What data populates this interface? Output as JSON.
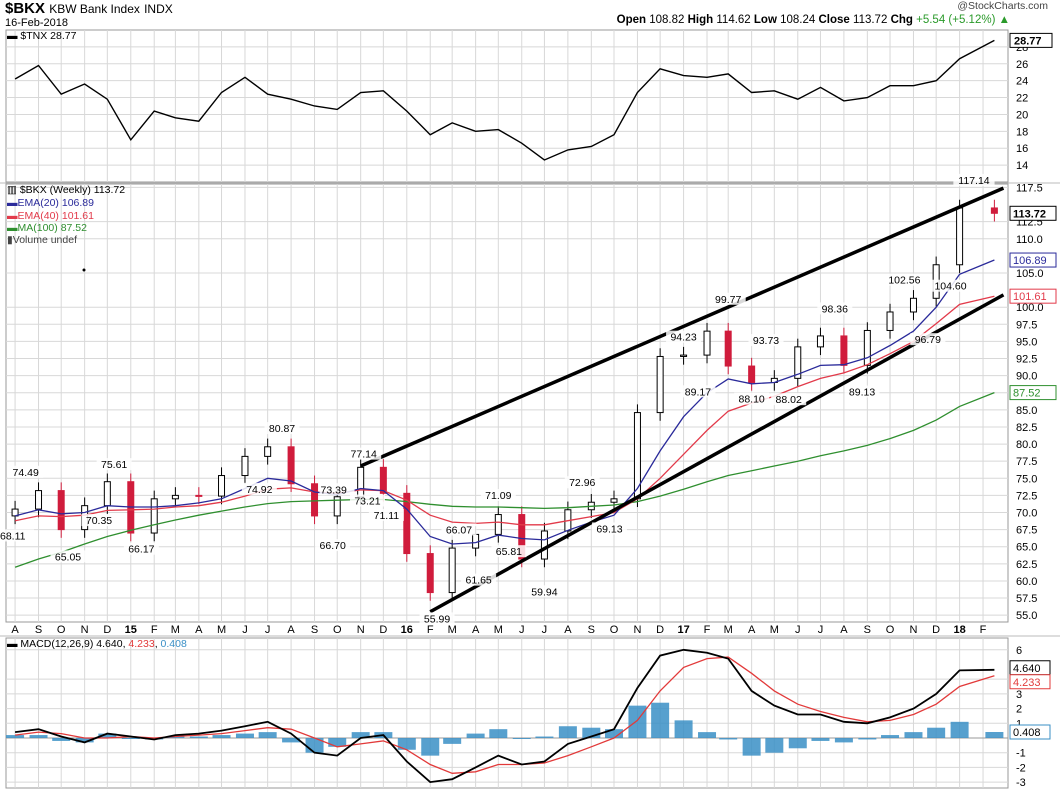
{
  "header": {
    "symbol": "$BKX",
    "name": "KBW Bank Index",
    "exchange": "INDX",
    "date": "16-Feb-2018",
    "credit": "@StockCharts.com",
    "ohlc": {
      "open_label": "Open",
      "open": "108.82",
      "high_label": "High",
      "high": "114.62",
      "low_label": "Low",
      "low": "108.24",
      "close_label": "Close",
      "close": "113.72",
      "chg_label": "Chg",
      "chg": "+5.54 (+5.12%)"
    },
    "chg_arrow_icon": "triangle-up-icon"
  },
  "colors": {
    "tnx": "#000000",
    "candle_up": "#000000",
    "candle_down": "#d01c3c",
    "ema20": "#2a2a9a",
    "ema40": "#e23a4a",
    "ma100": "#2f8f2f",
    "macd": "#000000",
    "signal": "#e23a3a",
    "histogram": "#3a8fc6",
    "grid": "#d8d8d8",
    "trendline": "#000000"
  },
  "chart_data": [
    {
      "type": "line",
      "legend": "$TNX 28.77",
      "last_value": "28.77",
      "ylim": [
        12,
        30
      ],
      "yticks": [
        "28",
        "26",
        "24",
        "22",
        "20",
        "18",
        "16",
        "14"
      ],
      "x": [
        "2014-08-01",
        "2014-09-01",
        "2014-10-01",
        "2014-11-01",
        "2014-12-01",
        "2015-01-01",
        "2015-02-01",
        "2015-03-01",
        "2015-04-01",
        "2015-05-01",
        "2015-06-01",
        "2015-07-01",
        "2015-08-01",
        "2015-09-01",
        "2015-10-01",
        "2015-11-01",
        "2015-12-01",
        "2016-01-01",
        "2016-02-01",
        "2016-03-01",
        "2016-04-01",
        "2016-05-01",
        "2016-06-01",
        "2016-07-01",
        "2016-08-01",
        "2016-09-01",
        "2016-10-01",
        "2016-11-01",
        "2016-12-01",
        "2017-01-01",
        "2017-02-01",
        "2017-03-01",
        "2017-04-01",
        "2017-05-01",
        "2017-06-01",
        "2017-07-01",
        "2017-08-01",
        "2017-09-01",
        "2017-10-01",
        "2017-11-01",
        "2017-12-01",
        "2018-01-01",
        "2018-02-16"
      ],
      "values": [
        24.2,
        25.8,
        22.4,
        23.6,
        21.8,
        17.0,
        20.4,
        19.6,
        19.2,
        22.6,
        24.4,
        22.4,
        21.8,
        21.0,
        20.6,
        22.6,
        22.8,
        20.4,
        17.6,
        19.0,
        18.0,
        18.2,
        16.6,
        14.6,
        15.8,
        16.2,
        17.6,
        22.6,
        25.4,
        24.6,
        24.4,
        24.8,
        22.6,
        22.8,
        21.8,
        23.2,
        21.6,
        22.0,
        23.4,
        23.4,
        24.0,
        26.6,
        28.77
      ]
    },
    {
      "type": "candlestick",
      "title": "$BKX (Weekly) 113.72",
      "last_value": "113.72",
      "legend": [
        {
          "name": "EMA(20)",
          "value": "106.89",
          "color_key": "ema20"
        },
        {
          "name": "EMA(40)",
          "value": "101.61",
          "color_key": "ema40"
        },
        {
          "name": "MA(100)",
          "value": "87.52",
          "color_key": "ma100"
        },
        {
          "name": "Volume undef",
          "value": "",
          "color_key": "tnx"
        }
      ],
      "ylim": [
        54,
        118
      ],
      "yticks": [
        "117.5",
        "112.5",
        "110.0",
        "105.0",
        "100.0",
        "97.5",
        "95.0",
        "92.5",
        "90.0",
        "87.5",
        "85.0",
        "82.5",
        "80.0",
        "77.5",
        "75.0",
        "72.5",
        "70.0",
        "67.5",
        "65.0",
        "62.5",
        "60.0",
        "57.5",
        "55.0"
      ],
      "right_labels": [
        {
          "text": "113.72",
          "value": 113.72,
          "style": "bold"
        },
        {
          "text": "106.89",
          "value": 106.89,
          "color_key": "ema20"
        },
        {
          "text": "101.61",
          "value": 101.61,
          "color_key": "ema40"
        },
        {
          "text": "87.52",
          "value": 87.52,
          "color_key": "ma100"
        }
      ],
      "x": [
        "2014-08-01",
        "2014-09-01",
        "2014-10-01",
        "2014-11-01",
        "2014-12-01",
        "2015-01-01",
        "2015-02-01",
        "2015-03-01",
        "2015-04-01",
        "2015-05-01",
        "2015-06-01",
        "2015-07-01",
        "2015-08-01",
        "2015-09-01",
        "2015-10-01",
        "2015-11-01",
        "2015-12-01",
        "2016-01-01",
        "2016-02-01",
        "2016-03-01",
        "2016-04-01",
        "2016-05-01",
        "2016-06-01",
        "2016-07-01",
        "2016-08-01",
        "2016-09-01",
        "2016-10-01",
        "2016-11-01",
        "2016-12-01",
        "2017-01-01",
        "2017-02-01",
        "2017-03-01",
        "2017-04-01",
        "2017-05-01",
        "2017-06-01",
        "2017-07-01",
        "2017-08-01",
        "2017-09-01",
        "2017-10-01",
        "2017-11-01",
        "2017-12-01",
        "2018-01-01",
        "2018-02-16"
      ],
      "close": [
        70.5,
        73.2,
        67.5,
        71.0,
        74.5,
        67.0,
        72.0,
        72.5,
        72.4,
        75.4,
        78.2,
        79.6,
        74.2,
        69.5,
        72.3,
        76.6,
        72.8,
        64.0,
        58.3,
        64.8,
        66.8,
        69.7,
        63.2,
        67.3,
        70.4,
        71.5,
        72.0,
        84.6,
        92.8,
        93.0,
        96.5,
        91.4,
        89.0,
        89.6,
        94.2,
        95.8,
        91.5,
        96.6,
        99.3,
        101.3,
        106.2,
        114.5,
        113.72
      ],
      "ema20": [
        69.5,
        70.4,
        69.8,
        70.0,
        71.0,
        70.8,
        70.8,
        71.0,
        71.4,
        72.0,
        73.5,
        75.0,
        74.6,
        73.0,
        72.6,
        73.5,
        73.2,
        70.5,
        66.5,
        65.4,
        65.6,
        66.7,
        66.2,
        66.0,
        67.4,
        68.6,
        69.6,
        73.5,
        79.0,
        84.0,
        87.5,
        89.5,
        88.8,
        89.0,
        90.2,
        91.5,
        91.6,
        92.6,
        94.4,
        96.5,
        100.0,
        104.8,
        106.89
      ],
      "ema40": [
        68.8,
        69.5,
        69.4,
        69.6,
        70.3,
        70.4,
        70.5,
        70.8,
        71.0,
        71.5,
        72.4,
        73.4,
        73.6,
        73.0,
        72.8,
        73.3,
        73.2,
        71.8,
        69.6,
        68.6,
        68.4,
        68.6,
        68.2,
        68.2,
        68.8,
        69.4,
        70.0,
        72.0,
        75.0,
        78.5,
        82.0,
        84.8,
        86.0,
        87.0,
        88.4,
        89.6,
        90.4,
        91.6,
        93.2,
        95.0,
        97.6,
        100.4,
        101.61
      ],
      "ma100": [
        62.0,
        63.2,
        64.2,
        65.4,
        66.5,
        67.4,
        68.2,
        68.9,
        69.6,
        70.2,
        70.8,
        71.3,
        71.6,
        71.7,
        71.8,
        71.9,
        71.9,
        71.6,
        71.2,
        70.9,
        70.8,
        70.8,
        70.7,
        70.6,
        70.7,
        70.9,
        71.1,
        71.6,
        72.4,
        73.4,
        74.5,
        75.4,
        76.1,
        76.8,
        77.5,
        78.3,
        79.0,
        79.8,
        80.8,
        82.0,
        83.5,
        85.5,
        87.52
      ],
      "annotations": [
        {
          "text": "74.49",
          "x": "2014-08-15",
          "y": 74.49,
          "pos": "above"
        },
        {
          "text": "68.11",
          "x": "2014-08-01",
          "y": 68.11,
          "pos": "below"
        },
        {
          "text": "65.05",
          "x": "2014-10-10",
          "y": 65.05,
          "pos": "below"
        },
        {
          "text": "75.61",
          "x": "2014-12-10",
          "y": 75.61,
          "pos": "above"
        },
        {
          "text": "70.35",
          "x": "2014-11-20",
          "y": 70.35,
          "pos": "below"
        },
        {
          "text": "66.17",
          "x": "2015-01-15",
          "y": 66.17,
          "pos": "below"
        },
        {
          "text": "80.87",
          "x": "2015-07-20",
          "y": 80.87,
          "pos": "above"
        },
        {
          "text": "74.92",
          "x": "2015-06-20",
          "y": 74.92,
          "pos": "below"
        },
        {
          "text": "73.39",
          "x": "2015-09-01",
          "y": 73.39,
          "pos": "right"
        },
        {
          "text": "66.70",
          "x": "2015-09-25",
          "y": 66.7,
          "pos": "below"
        },
        {
          "text": "77.14",
          "x": "2015-11-05",
          "y": 77.14,
          "pos": "above"
        },
        {
          "text": "73.21",
          "x": "2015-11-10",
          "y": 73.21,
          "pos": "below"
        },
        {
          "text": "71.11",
          "x": "2015-12-05",
          "y": 71.11,
          "pos": "below"
        },
        {
          "text": "66.07",
          "x": "2016-03-10",
          "y": 66.07,
          "pos": "above"
        },
        {
          "text": "55.99",
          "x": "2016-02-10",
          "y": 55.99,
          "pos": "below"
        },
        {
          "text": "61.65",
          "x": "2016-04-05",
          "y": 61.65,
          "pos": "below"
        },
        {
          "text": "71.09",
          "x": "2016-05-01",
          "y": 71.09,
          "pos": "above"
        },
        {
          "text": "65.81",
          "x": "2016-05-15",
          "y": 65.81,
          "pos": "below"
        },
        {
          "text": "59.94",
          "x": "2016-07-01",
          "y": 59.94,
          "pos": "below"
        },
        {
          "text": "72.96",
          "x": "2016-08-20",
          "y": 72.96,
          "pos": "above"
        },
        {
          "text": "69.13",
          "x": "2016-09-25",
          "y": 69.13,
          "pos": "below"
        },
        {
          "text": "94.23",
          "x": "2017-01-01",
          "y": 94.23,
          "pos": "above"
        },
        {
          "text": "89.17",
          "x": "2017-01-20",
          "y": 89.17,
          "pos": "below"
        },
        {
          "text": "99.77",
          "x": "2017-03-01",
          "y": 99.77,
          "pos": "above"
        },
        {
          "text": "93.73",
          "x": "2017-04-20",
          "y": 93.73,
          "pos": "above"
        },
        {
          "text": "88.10",
          "x": "2017-04-01",
          "y": 88.1,
          "pos": "below"
        },
        {
          "text": "88.02",
          "x": "2017-05-20",
          "y": 88.02,
          "pos": "below"
        },
        {
          "text": "98.36",
          "x": "2017-07-20",
          "y": 98.36,
          "pos": "above"
        },
        {
          "text": "89.13",
          "x": "2017-08-25",
          "y": 89.13,
          "pos": "below"
        },
        {
          "text": "102.56",
          "x": "2017-10-20",
          "y": 102.56,
          "pos": "above"
        },
        {
          "text": "96.79",
          "x": "2017-11-20",
          "y": 96.79,
          "pos": "below"
        },
        {
          "text": "104.60",
          "x": "2017-12-20",
          "y": 104.6,
          "pos": "below"
        },
        {
          "text": "117.14",
          "x": "2018-01-20",
          "y": 117.14,
          "pos": "above"
        }
      ],
      "trendlines": [
        {
          "x": [
            "2015-11-01",
            "2018-02-28"
          ],
          "y": [
            76.8,
            117.4
          ]
        },
        {
          "x": [
            "2016-02-01",
            "2018-02-28"
          ],
          "y": [
            55.5,
            101.8
          ]
        }
      ]
    },
    {
      "type": "line",
      "legend_label": "MACD(12,26,9)",
      "legend_macd": "4.640",
      "legend_signal": "4.233",
      "legend_hist": "0.408",
      "right_labels": [
        "4.640",
        "4.233",
        "0.408"
      ],
      "ylim": [
        -3.4,
        6.8
      ],
      "yticks": [
        "6",
        "4",
        "3",
        "2",
        "1",
        "-1",
        "-2",
        "-3"
      ],
      "x": [
        "2014-08-01",
        "2014-09-01",
        "2014-10-01",
        "2014-11-01",
        "2014-12-01",
        "2015-01-01",
        "2015-02-01",
        "2015-03-01",
        "2015-04-01",
        "2015-05-01",
        "2015-06-01",
        "2015-07-01",
        "2015-08-01",
        "2015-09-01",
        "2015-10-01",
        "2015-11-01",
        "2015-12-01",
        "2016-01-01",
        "2016-02-01",
        "2016-03-01",
        "2016-04-01",
        "2016-05-01",
        "2016-06-01",
        "2016-07-01",
        "2016-08-01",
        "2016-09-01",
        "2016-10-01",
        "2016-11-01",
        "2016-12-01",
        "2017-01-01",
        "2017-02-01",
        "2017-03-01",
        "2017-04-01",
        "2017-05-01",
        "2017-06-01",
        "2017-07-01",
        "2017-08-01",
        "2017-09-01",
        "2017-10-01",
        "2017-11-01",
        "2017-12-01",
        "2018-01-01",
        "2018-02-16"
      ],
      "series": [
        {
          "name": "MACD",
          "color_key": "macd",
          "values": [
            0.4,
            0.6,
            0.1,
            -0.3,
            0.3,
            0.1,
            -0.1,
            0.2,
            0.3,
            0.5,
            0.8,
            1.1,
            0.3,
            -1.0,
            -1.2,
            0.0,
            0.2,
            -1.6,
            -3.0,
            -2.8,
            -2.0,
            -1.2,
            -1.8,
            -1.6,
            -0.4,
            0.1,
            0.6,
            3.4,
            5.6,
            6.0,
            5.8,
            5.4,
            3.2,
            2.2,
            1.6,
            1.6,
            1.1,
            1.0,
            1.4,
            2.0,
            3.0,
            4.6,
            4.64
          ]
        },
        {
          "name": "Signal",
          "color_key": "signal",
          "values": [
            0.2,
            0.4,
            0.3,
            0.0,
            0.0,
            0.1,
            0.0,
            0.1,
            0.2,
            0.3,
            0.5,
            0.7,
            0.6,
            0.0,
            -0.6,
            -0.4,
            -0.2,
            -0.8,
            -1.8,
            -2.4,
            -2.3,
            -1.8,
            -1.8,
            -1.7,
            -1.2,
            -0.6,
            0.0,
            1.2,
            3.2,
            4.8,
            5.4,
            5.5,
            4.4,
            3.2,
            2.3,
            1.8,
            1.4,
            1.1,
            1.2,
            1.6,
            2.3,
            3.5,
            4.233
          ]
        },
        {
          "name": "Histogram",
          "color_key": "histogram",
          "values": [
            0.2,
            0.2,
            -0.2,
            -0.3,
            0.3,
            0.0,
            -0.1,
            0.1,
            0.1,
            0.2,
            0.3,
            0.4,
            -0.3,
            -1.0,
            -0.6,
            0.4,
            0.4,
            -0.8,
            -1.2,
            -0.4,
            0.3,
            0.6,
            0.0,
            0.1,
            0.8,
            0.7,
            0.6,
            2.2,
            2.4,
            1.2,
            0.4,
            -0.1,
            -1.2,
            -1.0,
            -0.7,
            -0.2,
            -0.3,
            -0.1,
            0.2,
            0.4,
            0.7,
            1.1,
            0.408
          ]
        }
      ]
    }
  ],
  "x_axis": {
    "labels": [
      {
        "t": "A",
        "x": "2014-08-01"
      },
      {
        "t": "S",
        "x": "2014-09-01"
      },
      {
        "t": "O",
        "x": "2014-10-01"
      },
      {
        "t": "N",
        "x": "2014-11-01"
      },
      {
        "t": "D",
        "x": "2014-12-01"
      },
      {
        "t": "15",
        "x": "2015-01-01",
        "bold": true
      },
      {
        "t": "F",
        "x": "2015-02-01"
      },
      {
        "t": "M",
        "x": "2015-03-01"
      },
      {
        "t": "A",
        "x": "2015-04-01"
      },
      {
        "t": "M",
        "x": "2015-05-01"
      },
      {
        "t": "J",
        "x": "2015-06-01"
      },
      {
        "t": "J",
        "x": "2015-07-01"
      },
      {
        "t": "A",
        "x": "2015-08-01"
      },
      {
        "t": "S",
        "x": "2015-09-01"
      },
      {
        "t": "O",
        "x": "2015-10-01"
      },
      {
        "t": "N",
        "x": "2015-11-01"
      },
      {
        "t": "D",
        "x": "2015-12-01"
      },
      {
        "t": "16",
        "x": "2016-01-01",
        "bold": true
      },
      {
        "t": "F",
        "x": "2016-02-01"
      },
      {
        "t": "M",
        "x": "2016-03-01"
      },
      {
        "t": "A",
        "x": "2016-04-01"
      },
      {
        "t": "M",
        "x": "2016-05-01"
      },
      {
        "t": "J",
        "x": "2016-06-01"
      },
      {
        "t": "J",
        "x": "2016-07-01"
      },
      {
        "t": "A",
        "x": "2016-08-01"
      },
      {
        "t": "S",
        "x": "2016-09-01"
      },
      {
        "t": "O",
        "x": "2016-10-01"
      },
      {
        "t": "N",
        "x": "2016-11-01"
      },
      {
        "t": "D",
        "x": "2016-12-01"
      },
      {
        "t": "17",
        "x": "2017-01-01",
        "bold": true
      },
      {
        "t": "F",
        "x": "2017-02-01"
      },
      {
        "t": "M",
        "x": "2017-03-01"
      },
      {
        "t": "A",
        "x": "2017-04-01"
      },
      {
        "t": "M",
        "x": "2017-05-01"
      },
      {
        "t": "J",
        "x": "2017-06-01"
      },
      {
        "t": "J",
        "x": "2017-07-01"
      },
      {
        "t": "A",
        "x": "2017-08-01"
      },
      {
        "t": "S",
        "x": "2017-09-01"
      },
      {
        "t": "O",
        "x": "2017-10-01"
      },
      {
        "t": "N",
        "x": "2017-11-01"
      },
      {
        "t": "D",
        "x": "2017-12-01"
      },
      {
        "t": "18",
        "x": "2018-01-01",
        "bold": true
      },
      {
        "t": "F",
        "x": "2018-02-01"
      }
    ]
  }
}
